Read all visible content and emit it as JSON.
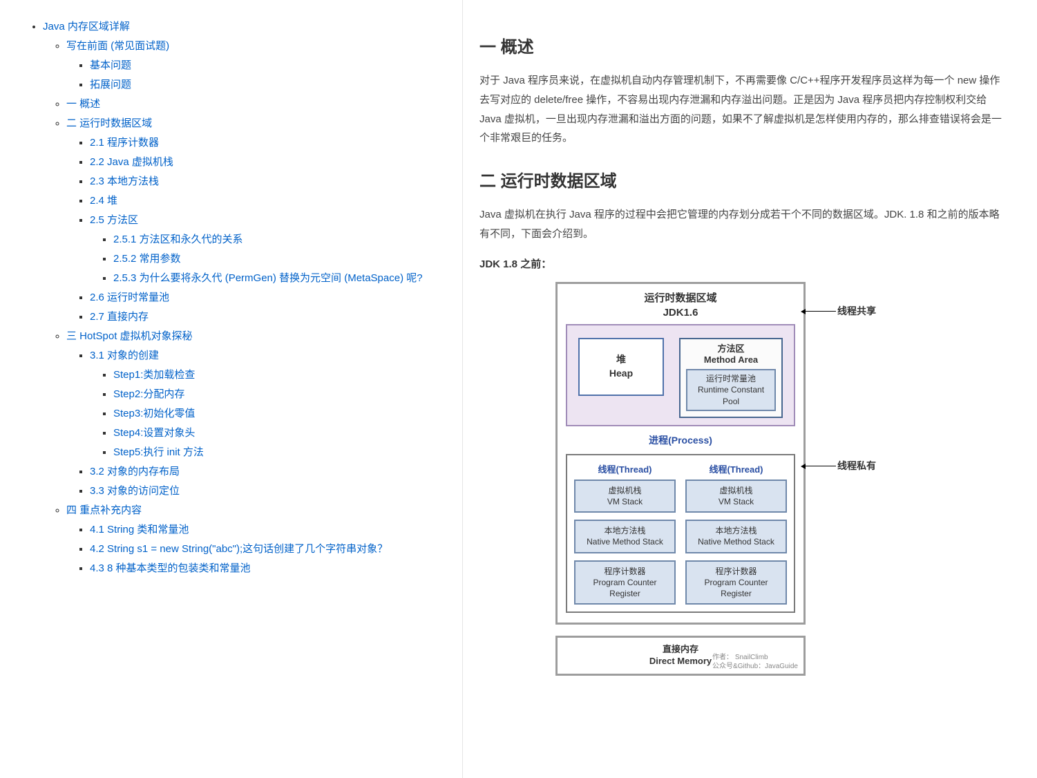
{
  "toc_root": "Java 内存区域详解",
  "toc": [
    {
      "label": "写在前面 (常见面试题)",
      "children": [
        {
          "label": "基本问题"
        },
        {
          "label": "拓展问题"
        }
      ]
    },
    {
      "label": "一 概述"
    },
    {
      "label": "二 运行时数据区域",
      "children": [
        {
          "label": "2.1 程序计数器"
        },
        {
          "label": "2.2 Java 虚拟机栈"
        },
        {
          "label": "2.3 本地方法栈"
        },
        {
          "label": "2.4 堆"
        },
        {
          "label": "2.5 方法区",
          "children": [
            {
              "label": "2.5.1 方法区和永久代的关系"
            },
            {
              "label": "2.5.2 常用参数"
            },
            {
              "label": "2.5.3 为什么要将永久代 (PermGen) 替换为元空间 (MetaSpace) 呢?"
            }
          ]
        },
        {
          "label": "2.6 运行时常量池"
        },
        {
          "label": "2.7 直接内存"
        }
      ]
    },
    {
      "label": "三 HotSpot 虚拟机对象探秘",
      "children": [
        {
          "label": "3.1 对象的创建",
          "children": [
            {
              "label": "Step1:类加载检查"
            },
            {
              "label": "Step2:分配内存"
            },
            {
              "label": "Step3:初始化零值"
            },
            {
              "label": "Step4:设置对象头"
            },
            {
              "label": "Step5:执行 init 方法"
            }
          ]
        },
        {
          "label": "3.2 对象的内存布局"
        },
        {
          "label": "3.3 对象的访问定位"
        }
      ]
    },
    {
      "label": "四 重点补充内容",
      "children": [
        {
          "label": "4.1 String 类和常量池"
        },
        {
          "label": "4.2 String s1 = new String(\"abc\");这句话创建了几个字符串对象？"
        },
        {
          "label": "4.3 8 种基本类型的包装类和常量池"
        }
      ]
    }
  ],
  "content": {
    "h1": "一 概述",
    "p1": "对于 Java 程序员来说，在虚拟机自动内存管理机制下，不再需要像 C/C++程序开发程序员这样为每一个 new 操作去写对应的 delete/free 操作，不容易出现内存泄漏和内存溢出问题。正是因为 Java 程序员把内存控制权利交给 Java 虚拟机，一旦出现内存泄漏和溢出方面的问题，如果不了解虚拟机是怎样使用内存的，那么排查错误将会是一个非常艰巨的任务。",
    "h2": "二 运行时数据区域",
    "p2": "Java 虚拟机在执行 Java 程序的过程中会把它管理的内存划分成若干个不同的数据区域。JDK. 1.8 和之前的版本略有不同，下面会介绍到。",
    "pre_diagram_label": "JDK 1.8 之前："
  },
  "diagram": {
    "title_line1": "运行时数据区域",
    "title_line2": "JDK1.6",
    "heap_cn": "堆",
    "heap_en": "Heap",
    "method_area_cn": "方法区",
    "method_area_en": "Method Area",
    "rcp_cn": "运行时常量池",
    "rcp_en": "Runtime Constant Pool",
    "process_label": "进程(Process)",
    "thread_label": "线程(Thread)",
    "vm_stack_cn": "虚拟机栈",
    "vm_stack_en": "VM Stack",
    "native_stack_cn": "本地方法栈",
    "native_stack_en": "Native Method Stack",
    "pc_cn": "程序计数器",
    "pc_en": "Program Counter Register",
    "direct_mem_cn": "直接内存",
    "direct_mem_en": "Direct Memory",
    "side_shared": "线程共享",
    "side_private": "线程私有",
    "credit_author": "作者： SnailClimb",
    "credit_source": "公众号&Github：JavaGuide",
    "colors": {
      "link": "#0061c9",
      "outer_border": "#9d9d9d",
      "shared_border": "#a08cb8",
      "shared_bg": "#ede4f2",
      "box_border": "#6f88aa",
      "box_bg": "#d9e3f0",
      "process_text": "#2a4fa3"
    }
  }
}
